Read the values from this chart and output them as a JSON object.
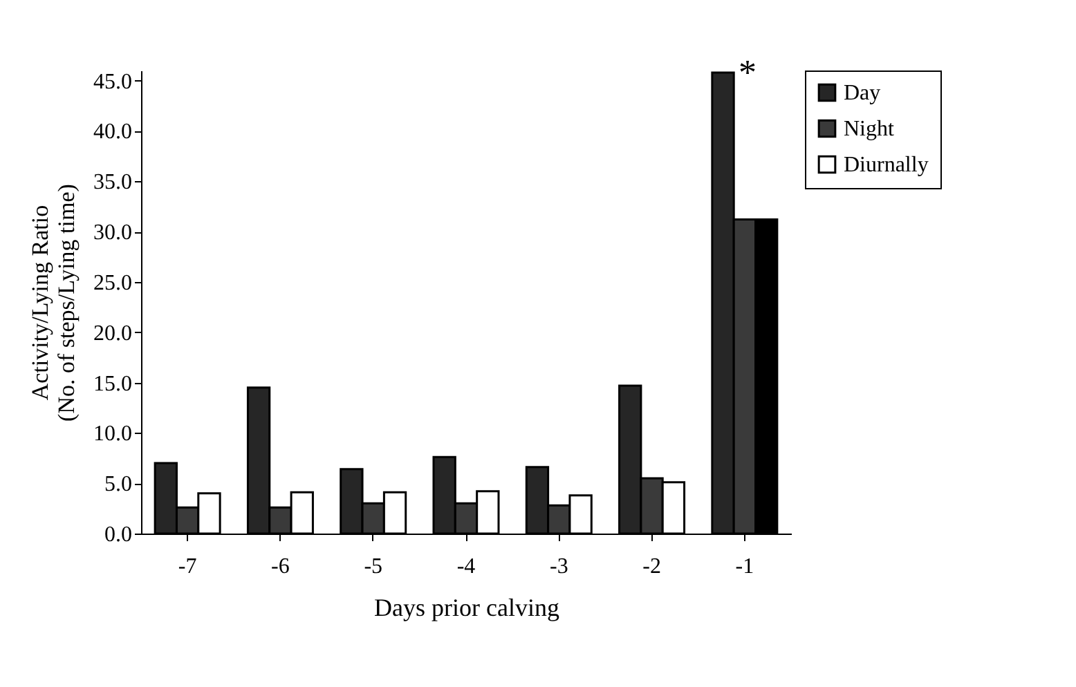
{
  "chart_data": {
    "type": "bar",
    "xlabel": "Days prior calving",
    "ylabel": "Activity/Lying Ratio\n(No. of steps/Lying time)",
    "categories": [
      "-7",
      "-6",
      "-5",
      "-4",
      "-3",
      "-2",
      "-1"
    ],
    "series": [
      {
        "name": "Day",
        "color": "#262626",
        "values": [
          7.0,
          14.5,
          6.4,
          7.6,
          6.6,
          14.7,
          45.8
        ]
      },
      {
        "name": "Night",
        "color": "#3a3a3a",
        "values": [
          2.6,
          2.6,
          3.0,
          3.0,
          2.8,
          5.5,
          31.2
        ]
      },
      {
        "name": "Diurnally",
        "color": "#ffffff",
        "colors": [
          "#ffffff",
          "#ffffff",
          "#ffffff",
          "#ffffff",
          "#ffffff",
          "#ffffff",
          "#000000"
        ],
        "values": [
          4.0,
          4.1,
          4.1,
          4.2,
          3.8,
          5.1,
          31.2
        ]
      }
    ],
    "ylim": [
      0,
      46
    ],
    "yticks": [
      {
        "value": 0,
        "label": "0.0"
      },
      {
        "value": 5,
        "label": "5.0"
      },
      {
        "value": 10,
        "label": "10.0"
      },
      {
        "value": 15,
        "label": "15.0"
      },
      {
        "value": 20,
        "label": "20.0"
      },
      {
        "value": 25,
        "label": "25.0"
      },
      {
        "value": 30,
        "label": "30.0"
      },
      {
        "value": 35,
        "label": "35.0"
      },
      {
        "value": 40,
        "label": "40.0"
      },
      {
        "value": 45,
        "label": "45.0"
      }
    ],
    "annotations": [
      "*"
    ],
    "grid": false,
    "legend": "top right"
  }
}
